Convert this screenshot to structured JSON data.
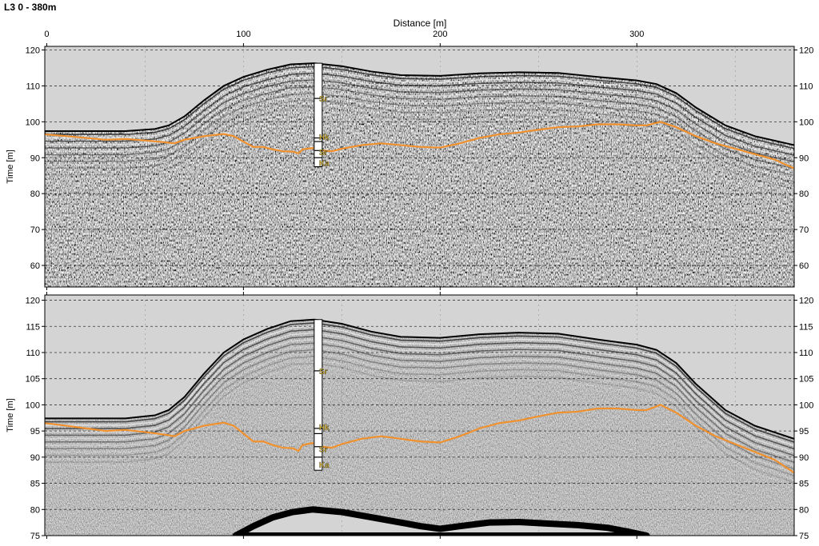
{
  "title": "L3 0 - 380m",
  "chart_data": [
    {
      "type": "line",
      "name": "upper-radargram",
      "xlabel": "Distance [m]",
      "ylabel": "Time [m]",
      "xlim": [
        -1,
        380
      ],
      "ylim": [
        54,
        121
      ],
      "x_ticks": [
        0,
        100,
        200,
        300
      ],
      "y_ticks": [
        60,
        70,
        80,
        90,
        100,
        110,
        120
      ],
      "grid": "dashed horizontal + minor vertical",
      "surface": [
        [
          -1,
          97.4
        ],
        [
          40,
          97.4
        ],
        [
          55,
          98
        ],
        [
          62,
          99
        ],
        [
          70,
          101.5
        ],
        [
          80,
          106
        ],
        [
          90,
          110
        ],
        [
          100,
          112.5
        ],
        [
          112,
          114.5
        ],
        [
          124,
          116
        ],
        [
          136,
          116.3
        ],
        [
          150,
          115.5
        ],
        [
          165,
          114
        ],
        [
          180,
          113
        ],
        [
          200,
          112.8
        ],
        [
          220,
          113.5
        ],
        [
          240,
          113.8
        ],
        [
          260,
          113.6
        ],
        [
          280,
          112.5
        ],
        [
          300,
          111.5
        ],
        [
          310,
          110.5
        ],
        [
          320,
          108
        ],
        [
          330,
          104
        ],
        [
          345,
          99
        ],
        [
          360,
          96
        ],
        [
          380,
          93.5
        ]
      ],
      "series": [
        {
          "color": "#f0912e",
          "points": [
            [
              -1,
              96.5
            ],
            [
              10,
              96
            ],
            [
              20,
              95.5
            ],
            [
              30,
              95
            ],
            [
              40,
              95.2
            ],
            [
              50,
              94.8
            ],
            [
              60,
              94.3
            ],
            [
              65,
              94
            ],
            [
              70,
              95
            ],
            [
              80,
              96
            ],
            [
              90,
              96.6
            ],
            [
              95,
              96
            ],
            [
              100,
              94.5
            ],
            [
              105,
              93
            ],
            [
              110,
              93
            ],
            [
              115,
              92.3
            ],
            [
              120,
              91.8
            ],
            [
              125,
              91.7
            ],
            [
              128,
              91.2
            ],
            [
              130,
              92.3
            ],
            [
              135,
              92.7
            ],
            [
              140,
              92
            ],
            [
              145,
              91.8
            ],
            [
              150,
              92.5
            ],
            [
              160,
              93.5
            ],
            [
              170,
              94
            ],
            [
              180,
              93.5
            ],
            [
              190,
              93
            ],
            [
              200,
              92.8
            ],
            [
              210,
              94
            ],
            [
              220,
              95.5
            ],
            [
              230,
              96.5
            ],
            [
              240,
              97
            ],
            [
              250,
              97.8
            ],
            [
              260,
              98.5
            ],
            [
              270,
              98.7
            ],
            [
              280,
              99.3
            ],
            [
              290,
              99.3
            ],
            [
              300,
              99
            ],
            [
              305,
              99
            ],
            [
              312,
              100
            ],
            [
              320,
              98.5
            ],
            [
              330,
              96
            ],
            [
              340,
              94
            ],
            [
              350,
              92.5
            ],
            [
              360,
              91
            ],
            [
              370,
              89.5
            ],
            [
              380,
              87
            ]
          ]
        }
      ],
      "borehole": {
        "x": 138,
        "top": 116.3,
        "bottom": 87.5,
        "contacts": [
          106.5,
          95.5,
          94.5,
          92,
          90
        ],
        "labels": [
          {
            "text": "Sr",
            "y": 106.5
          },
          {
            "text": "Hk",
            "y": 95.8
          },
          {
            "text": "Sr",
            "y": 91.6
          },
          {
            "text": "Ka",
            "y": 88.6
          }
        ]
      },
      "label_color": "#d9b83a"
    },
    {
      "type": "line",
      "name": "lower-radargram",
      "xlabel": "",
      "ylabel": "Time [m]",
      "xlim": [
        -1,
        380
      ],
      "ylim": [
        75,
        121
      ],
      "x_ticks": [
        0,
        100,
        200,
        300
      ],
      "y_ticks": [
        75,
        80,
        85,
        90,
        95,
        100,
        105,
        110,
        115,
        120
      ],
      "grid": "dashed horizontal + minor vertical",
      "surface": [
        [
          -1,
          97.4
        ],
        [
          40,
          97.4
        ],
        [
          55,
          98
        ],
        [
          62,
          99
        ],
        [
          70,
          101.5
        ],
        [
          80,
          106
        ],
        [
          90,
          110
        ],
        [
          100,
          112.5
        ],
        [
          112,
          114.5
        ],
        [
          124,
          116
        ],
        [
          136,
          116.3
        ],
        [
          150,
          115.5
        ],
        [
          165,
          114
        ],
        [
          180,
          113
        ],
        [
          200,
          112.8
        ],
        [
          220,
          113.5
        ],
        [
          240,
          113.8
        ],
        [
          260,
          113.6
        ],
        [
          280,
          112.5
        ],
        [
          300,
          111.5
        ],
        [
          310,
          110.5
        ],
        [
          320,
          108
        ],
        [
          330,
          104
        ],
        [
          345,
          99
        ],
        [
          360,
          96
        ],
        [
          380,
          93.5
        ]
      ],
      "bottom_reflector": [
        [
          96,
          75
        ],
        [
          105,
          76.8
        ],
        [
          115,
          78.5
        ],
        [
          125,
          79.5
        ],
        [
          135,
          80
        ],
        [
          150,
          79.5
        ],
        [
          165,
          78.5
        ],
        [
          180,
          77.5
        ],
        [
          190,
          76.8
        ],
        [
          200,
          76.3
        ],
        [
          210,
          76.8
        ],
        [
          225,
          77.5
        ],
        [
          240,
          77.6
        ],
        [
          255,
          77.3
        ],
        [
          270,
          77
        ],
        [
          285,
          76.5
        ],
        [
          295,
          75.8
        ],
        [
          305,
          75
        ]
      ],
      "series": [
        {
          "color": "#f0912e",
          "points": [
            [
              -1,
              96.5
            ],
            [
              10,
              96
            ],
            [
              20,
              95.5
            ],
            [
              30,
              95
            ],
            [
              40,
              95.2
            ],
            [
              50,
              94.8
            ],
            [
              60,
              94.3
            ],
            [
              65,
              94
            ],
            [
              70,
              95
            ],
            [
              80,
              96
            ],
            [
              90,
              96.6
            ],
            [
              95,
              96
            ],
            [
              100,
              94.5
            ],
            [
              105,
              93
            ],
            [
              110,
              93
            ],
            [
              115,
              92.3
            ],
            [
              120,
              91.8
            ],
            [
              125,
              91.7
            ],
            [
              128,
              91.2
            ],
            [
              130,
              92.3
            ],
            [
              135,
              92.7
            ],
            [
              140,
              92
            ],
            [
              145,
              91.8
            ],
            [
              150,
              92.5
            ],
            [
              160,
              93.5
            ],
            [
              170,
              94
            ],
            [
              180,
              93.5
            ],
            [
              190,
              93
            ],
            [
              200,
              92.8
            ],
            [
              210,
              94
            ],
            [
              220,
              95.5
            ],
            [
              230,
              96.5
            ],
            [
              240,
              97
            ],
            [
              250,
              97.8
            ],
            [
              260,
              98.5
            ],
            [
              270,
              98.7
            ],
            [
              280,
              99.3
            ],
            [
              290,
              99.3
            ],
            [
              300,
              99
            ],
            [
              305,
              99
            ],
            [
              312,
              100
            ],
            [
              320,
              98.5
            ],
            [
              330,
              96
            ],
            [
              340,
              94
            ],
            [
              350,
              92.5
            ],
            [
              360,
              91
            ],
            [
              370,
              89.5
            ],
            [
              380,
              87
            ]
          ]
        }
      ],
      "borehole": {
        "x": 138,
        "top": 116.3,
        "bottom": 87.5,
        "contacts": [
          106.5,
          95.5,
          94.5,
          92,
          90
        ],
        "labels": [
          {
            "text": "Sr",
            "y": 106.5
          },
          {
            "text": "Hk",
            "y": 95.8
          },
          {
            "text": "Sr",
            "y": 91.6
          },
          {
            "text": "Ka",
            "y": 88.6
          }
        ]
      },
      "label_color": "#d9b83a"
    }
  ]
}
